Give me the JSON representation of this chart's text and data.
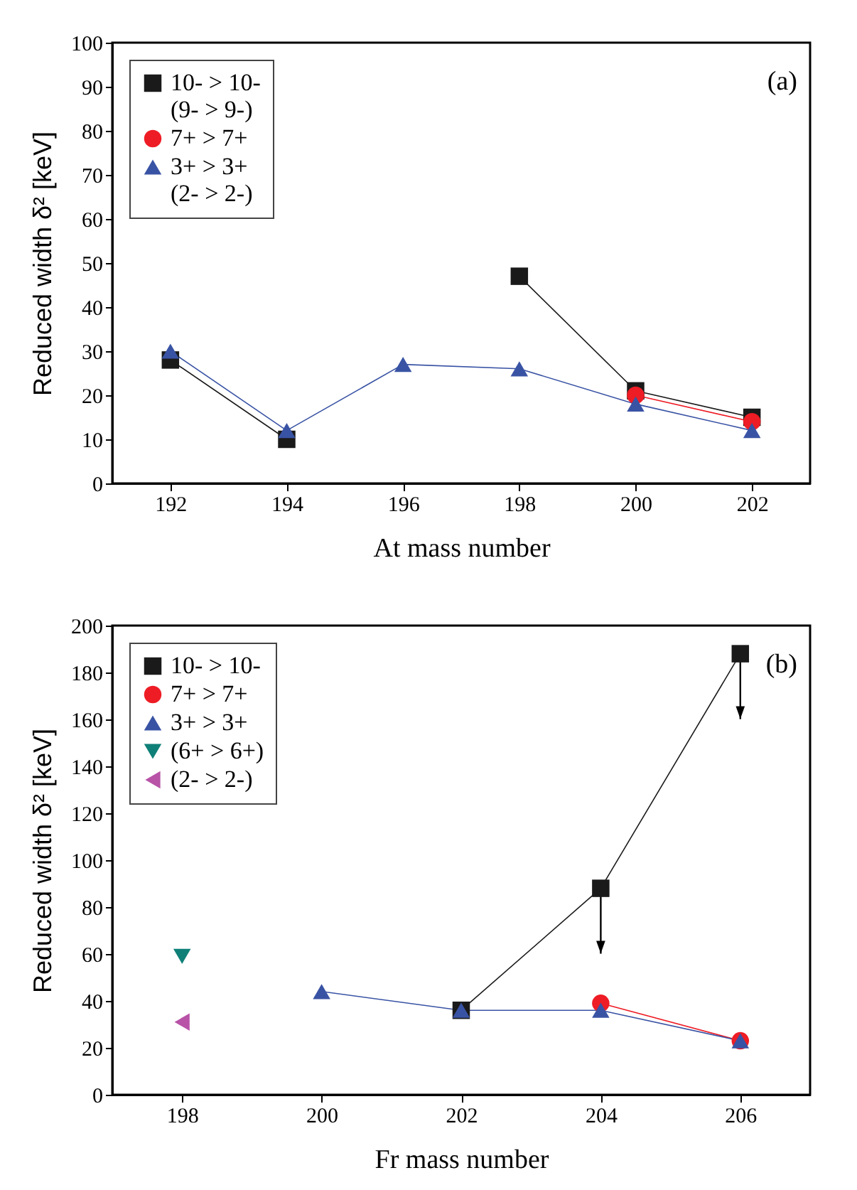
{
  "chart_data": [
    {
      "type": "line",
      "xlabel": "At mass number",
      "ylabel": "Reduced width δ² [keV]",
      "annotations": [
        "(a)"
      ],
      "xlim": [
        191,
        203
      ],
      "xticks": [
        192,
        194,
        196,
        198,
        200,
        202
      ],
      "ylim": [
        0,
        100
      ],
      "yticks": [
        0,
        10,
        20,
        30,
        40,
        50,
        60,
        70,
        80,
        90,
        100
      ],
      "legend": "top left",
      "grid": false,
      "series": [
        {
          "name": "10- > 10-\n(9- > 9-)",
          "color": "#1a1a1a",
          "marker": "square",
          "x": [
            192,
            194,
            196,
            198,
            200,
            202
          ],
          "values": [
            28,
            10,
            null,
            47,
            21,
            15
          ]
        },
        {
          "name": "7+ > 7+",
          "color": "#ee1c25",
          "marker": "circle",
          "x": [
            200,
            202
          ],
          "values": [
            20,
            14
          ]
        },
        {
          "name": "3+ > 3+\n(2- > 2-)",
          "color": "#3953a4",
          "marker": "triangle",
          "x": [
            192,
            194,
            196,
            198,
            200,
            202
          ],
          "values": [
            30,
            12,
            27,
            26,
            18,
            12
          ]
        }
      ]
    },
    {
      "type": "line",
      "xlabel": "Fr mass number",
      "ylabel": "Reduced width δ² [keV]",
      "annotations": [
        "(b)"
      ],
      "xlim": [
        197,
        207
      ],
      "xticks": [
        198,
        200,
        202,
        204,
        206
      ],
      "ylim": [
        0,
        200
      ],
      "yticks": [
        0,
        20,
        40,
        60,
        80,
        100,
        120,
        140,
        160,
        180,
        200
      ],
      "legend": "top left",
      "grid": false,
      "series": [
        {
          "name": "10- > 10-",
          "color": "#1a1a1a",
          "marker": "square",
          "x": [
            202,
            204,
            206
          ],
          "values": [
            36,
            88,
            188
          ]
        },
        {
          "name": "7+ > 7+",
          "color": "#ee1c25",
          "marker": "circle",
          "x": [
            204,
            206
          ],
          "values": [
            39,
            23
          ]
        },
        {
          "name": "3+ > 3+",
          "color": "#3953a4",
          "marker": "triangle",
          "x": [
            200,
            202,
            204,
            206
          ],
          "values": [
            44,
            36,
            36,
            23
          ]
        },
        {
          "name": "(6+ > 6+)",
          "color": "#0f8078",
          "marker": "triangle-down",
          "x": [
            198
          ],
          "values": [
            59
          ]
        },
        {
          "name": "(2- > 2-)",
          "color": "#b853a8",
          "marker": "triangle-left",
          "x": [
            198
          ],
          "values": [
            31
          ]
        }
      ]
    }
  ]
}
